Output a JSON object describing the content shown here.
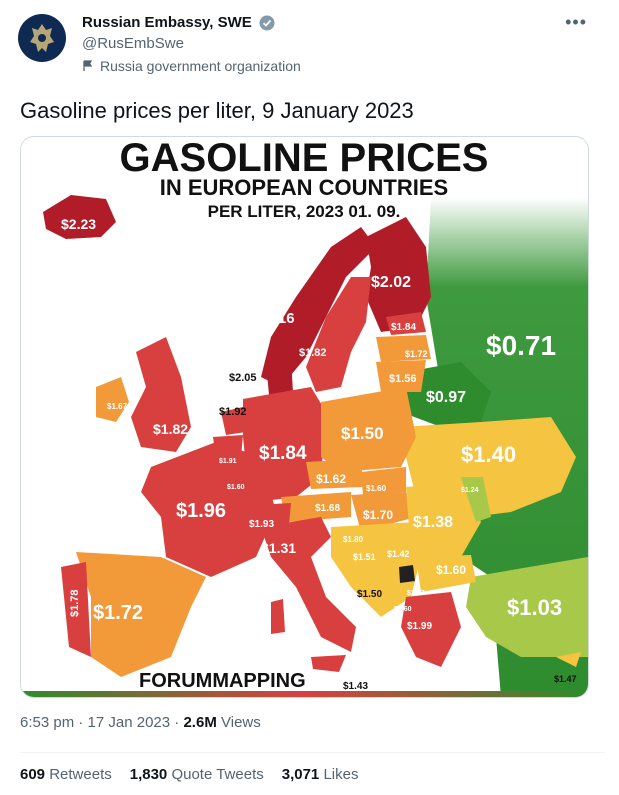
{
  "account": {
    "name": "Russian Embassy, SWE",
    "handle": "@RusEmbSwe",
    "label": "Russia government organization"
  },
  "tweet": {
    "text": "Gasoline prices per liter, 9 January 2023",
    "time": "6:53 pm",
    "date": "17 Jan 2023",
    "views_count": "2.6M",
    "views_label": "Views"
  },
  "map": {
    "title": "GASOLINE PRICES",
    "subtitle": "IN EUROPEAN COUNTRIES",
    "subtitle2": "PER LITER, 2023 01. 09.",
    "source": "FORUMMAPPING",
    "colors": {
      "red": "#d84040",
      "darkred": "#b01c28",
      "orange": "#f29a3a",
      "yellow": "#f5c542",
      "lightgreen": "#a8c84a",
      "green": "#2e8b2e"
    },
    "prices": [
      {
        "country": "Iceland",
        "label": "$2.23"
      },
      {
        "country": "Norway",
        "label": "$2.16"
      },
      {
        "country": "Finland",
        "label": "$2.02"
      },
      {
        "country": "Sweden",
        "label": "$1.82"
      },
      {
        "country": "Estonia",
        "label": "$1.84"
      },
      {
        "country": "Latvia",
        "label": "$1.72"
      },
      {
        "country": "Lithuania",
        "label": "$1.56"
      },
      {
        "country": "Belarus",
        "label": "$0.97"
      },
      {
        "country": "Russia",
        "label": "$0.71"
      },
      {
        "country": "Denmark",
        "label": "$2.05"
      },
      {
        "country": "Netherlands",
        "label": "$1.92"
      },
      {
        "country": "Ireland",
        "label": "$1.67"
      },
      {
        "country": "United Kingdom",
        "label": "$1.82"
      },
      {
        "country": "Germany",
        "label": "$1.84"
      },
      {
        "country": "Poland",
        "label": "$1.50"
      },
      {
        "country": "Ukraine",
        "label": "$1.40"
      },
      {
        "country": "Belgium",
        "label": "$1.91"
      },
      {
        "country": "Luxembourg",
        "label": "$1.60"
      },
      {
        "country": "Czechia",
        "label": "$1.62"
      },
      {
        "country": "Slovakia",
        "label": "$1.60"
      },
      {
        "country": "France",
        "label": "$1.96"
      },
      {
        "country": "Switzerland",
        "label": "$1.93"
      },
      {
        "country": "Austria",
        "label": "$1.68"
      },
      {
        "country": "Hungary",
        "label": "$1.70"
      },
      {
        "country": "Romania",
        "label": "$1.38"
      },
      {
        "country": "Moldova",
        "label": "$1.24"
      },
      {
        "country": "Italy",
        "label": "$1.80"
      },
      {
        "country": "Croatia",
        "label": "$1.51"
      },
      {
        "country": "Bosnia",
        "label": "$1.42"
      },
      {
        "country": "Serbia",
        "label": "$1.60"
      },
      {
        "country": "Bulgaria",
        "label": "$1.31"
      },
      {
        "country": "Montenegro",
        "label": "$1.50"
      },
      {
        "country": "North Macedonia",
        "label": "$1.37"
      },
      {
        "country": "Albania",
        "label": "$1.60"
      },
      {
        "country": "Greece",
        "label": "$1.99"
      },
      {
        "country": "Turkey",
        "label": "$1.03"
      },
      {
        "country": "Portugal",
        "label": "$1.78"
      },
      {
        "country": "Spain",
        "label": "$1.72"
      },
      {
        "country": "Malta",
        "label": "$1.43"
      },
      {
        "country": "Cyprus",
        "label": "$1.47"
      }
    ]
  },
  "stats": {
    "retweets_count": "609",
    "retweets_label": "Retweets",
    "quotes_count": "1,830",
    "quotes_label": "Quote Tweets",
    "likes_count": "3,071",
    "likes_label": "Likes"
  }
}
